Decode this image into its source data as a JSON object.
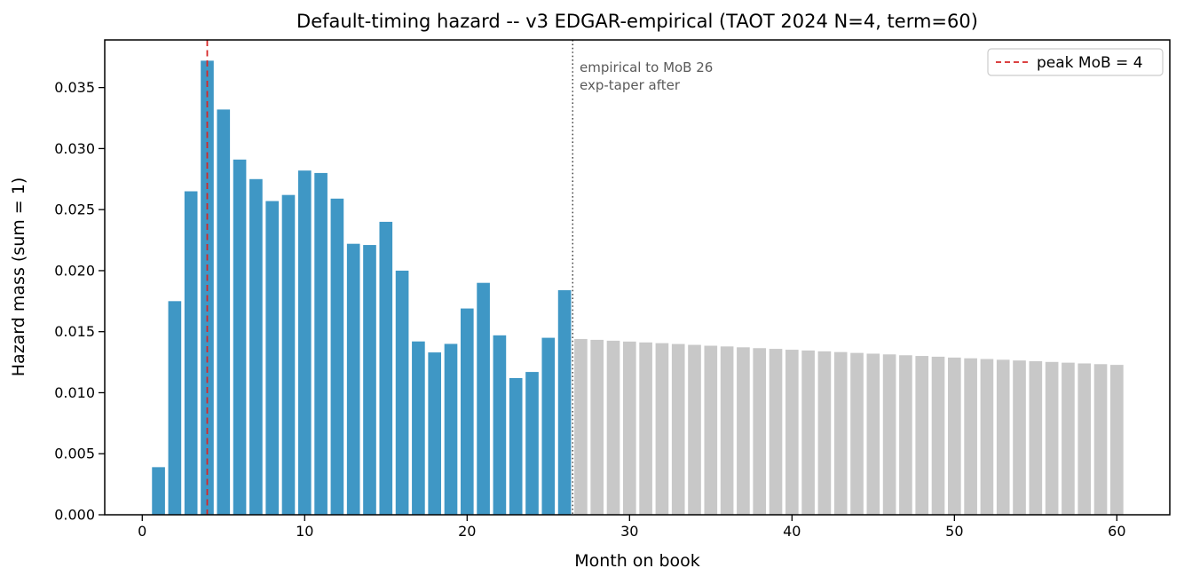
{
  "chart_data": {
    "type": "bar",
    "title": "Default-timing hazard -- v3 EDGAR-empirical (TAOT 2024 N=4, term=60)",
    "xlabel": "Month on book",
    "ylabel": "Hazard mass (sum = 1)",
    "xlim": [
      -2.31,
      63.26
    ],
    "ylim": [
      0,
      0.0389
    ],
    "xticks": [
      0,
      10,
      20,
      30,
      40,
      50,
      60
    ],
    "yticks": [
      0,
      0.005,
      0.01,
      0.015,
      0.02,
      0.025,
      0.03,
      0.035
    ],
    "ytick_decimals": 3,
    "grid": false,
    "bar_width_months": 0.8,
    "series": [
      {
        "name": "empirical",
        "color": "#3f97c5",
        "x": [
          1,
          2,
          3,
          4,
          5,
          6,
          7,
          8,
          9,
          10,
          11,
          12,
          13,
          14,
          15,
          16,
          17,
          18,
          19,
          20,
          21,
          22,
          23,
          24,
          25,
          26
        ],
        "values": [
          0.0039,
          0.0175,
          0.0265,
          0.0372,
          0.0332,
          0.0291,
          0.0275,
          0.0257,
          0.0262,
          0.0282,
          0.028,
          0.0259,
          0.0222,
          0.0221,
          0.024,
          0.02,
          0.0142,
          0.0133,
          0.014,
          0.0169,
          0.019,
          0.0147,
          0.0112,
          0.0117,
          0.0145,
          0.0184
        ]
      },
      {
        "name": "exp-taper",
        "color": "#c8c8c8",
        "x": [
          27,
          28,
          29,
          30,
          31,
          32,
          33,
          34,
          35,
          36,
          37,
          38,
          39,
          40,
          41,
          42,
          43,
          44,
          45,
          46,
          47,
          48,
          49,
          50,
          51,
          52,
          53,
          54,
          55,
          56,
          57,
          58,
          59,
          60
        ],
        "values": [
          0.0144,
          0.01433,
          0.01426,
          0.01419,
          0.01412,
          0.01406,
          0.01399,
          0.01392,
          0.01385,
          0.01379,
          0.01372,
          0.01365,
          0.01359,
          0.01352,
          0.01346,
          0.01339,
          0.01333,
          0.01326,
          0.0132,
          0.01314,
          0.01307,
          0.01301,
          0.01295,
          0.01288,
          0.01282,
          0.01276,
          0.0127,
          0.01264,
          0.01258,
          0.01252,
          0.01246,
          0.0124,
          0.01234,
          0.01228
        ]
      }
    ],
    "vlines": [
      {
        "name": "peak-mob-line",
        "x": 4,
        "style": "dashed",
        "color": "#d62728"
      },
      {
        "name": "empirical-taper-boundary-line",
        "x": 26.5,
        "style": "dotted",
        "color": "#3c3c3c"
      }
    ],
    "annotation": {
      "line1": "empirical to MoB 26",
      "line2": "exp-taper after",
      "x": 26.5
    },
    "legend": {
      "label": "peak MoB = 4",
      "line_color": "#d62728",
      "line_style": "dashed",
      "position": "upper right"
    }
  }
}
